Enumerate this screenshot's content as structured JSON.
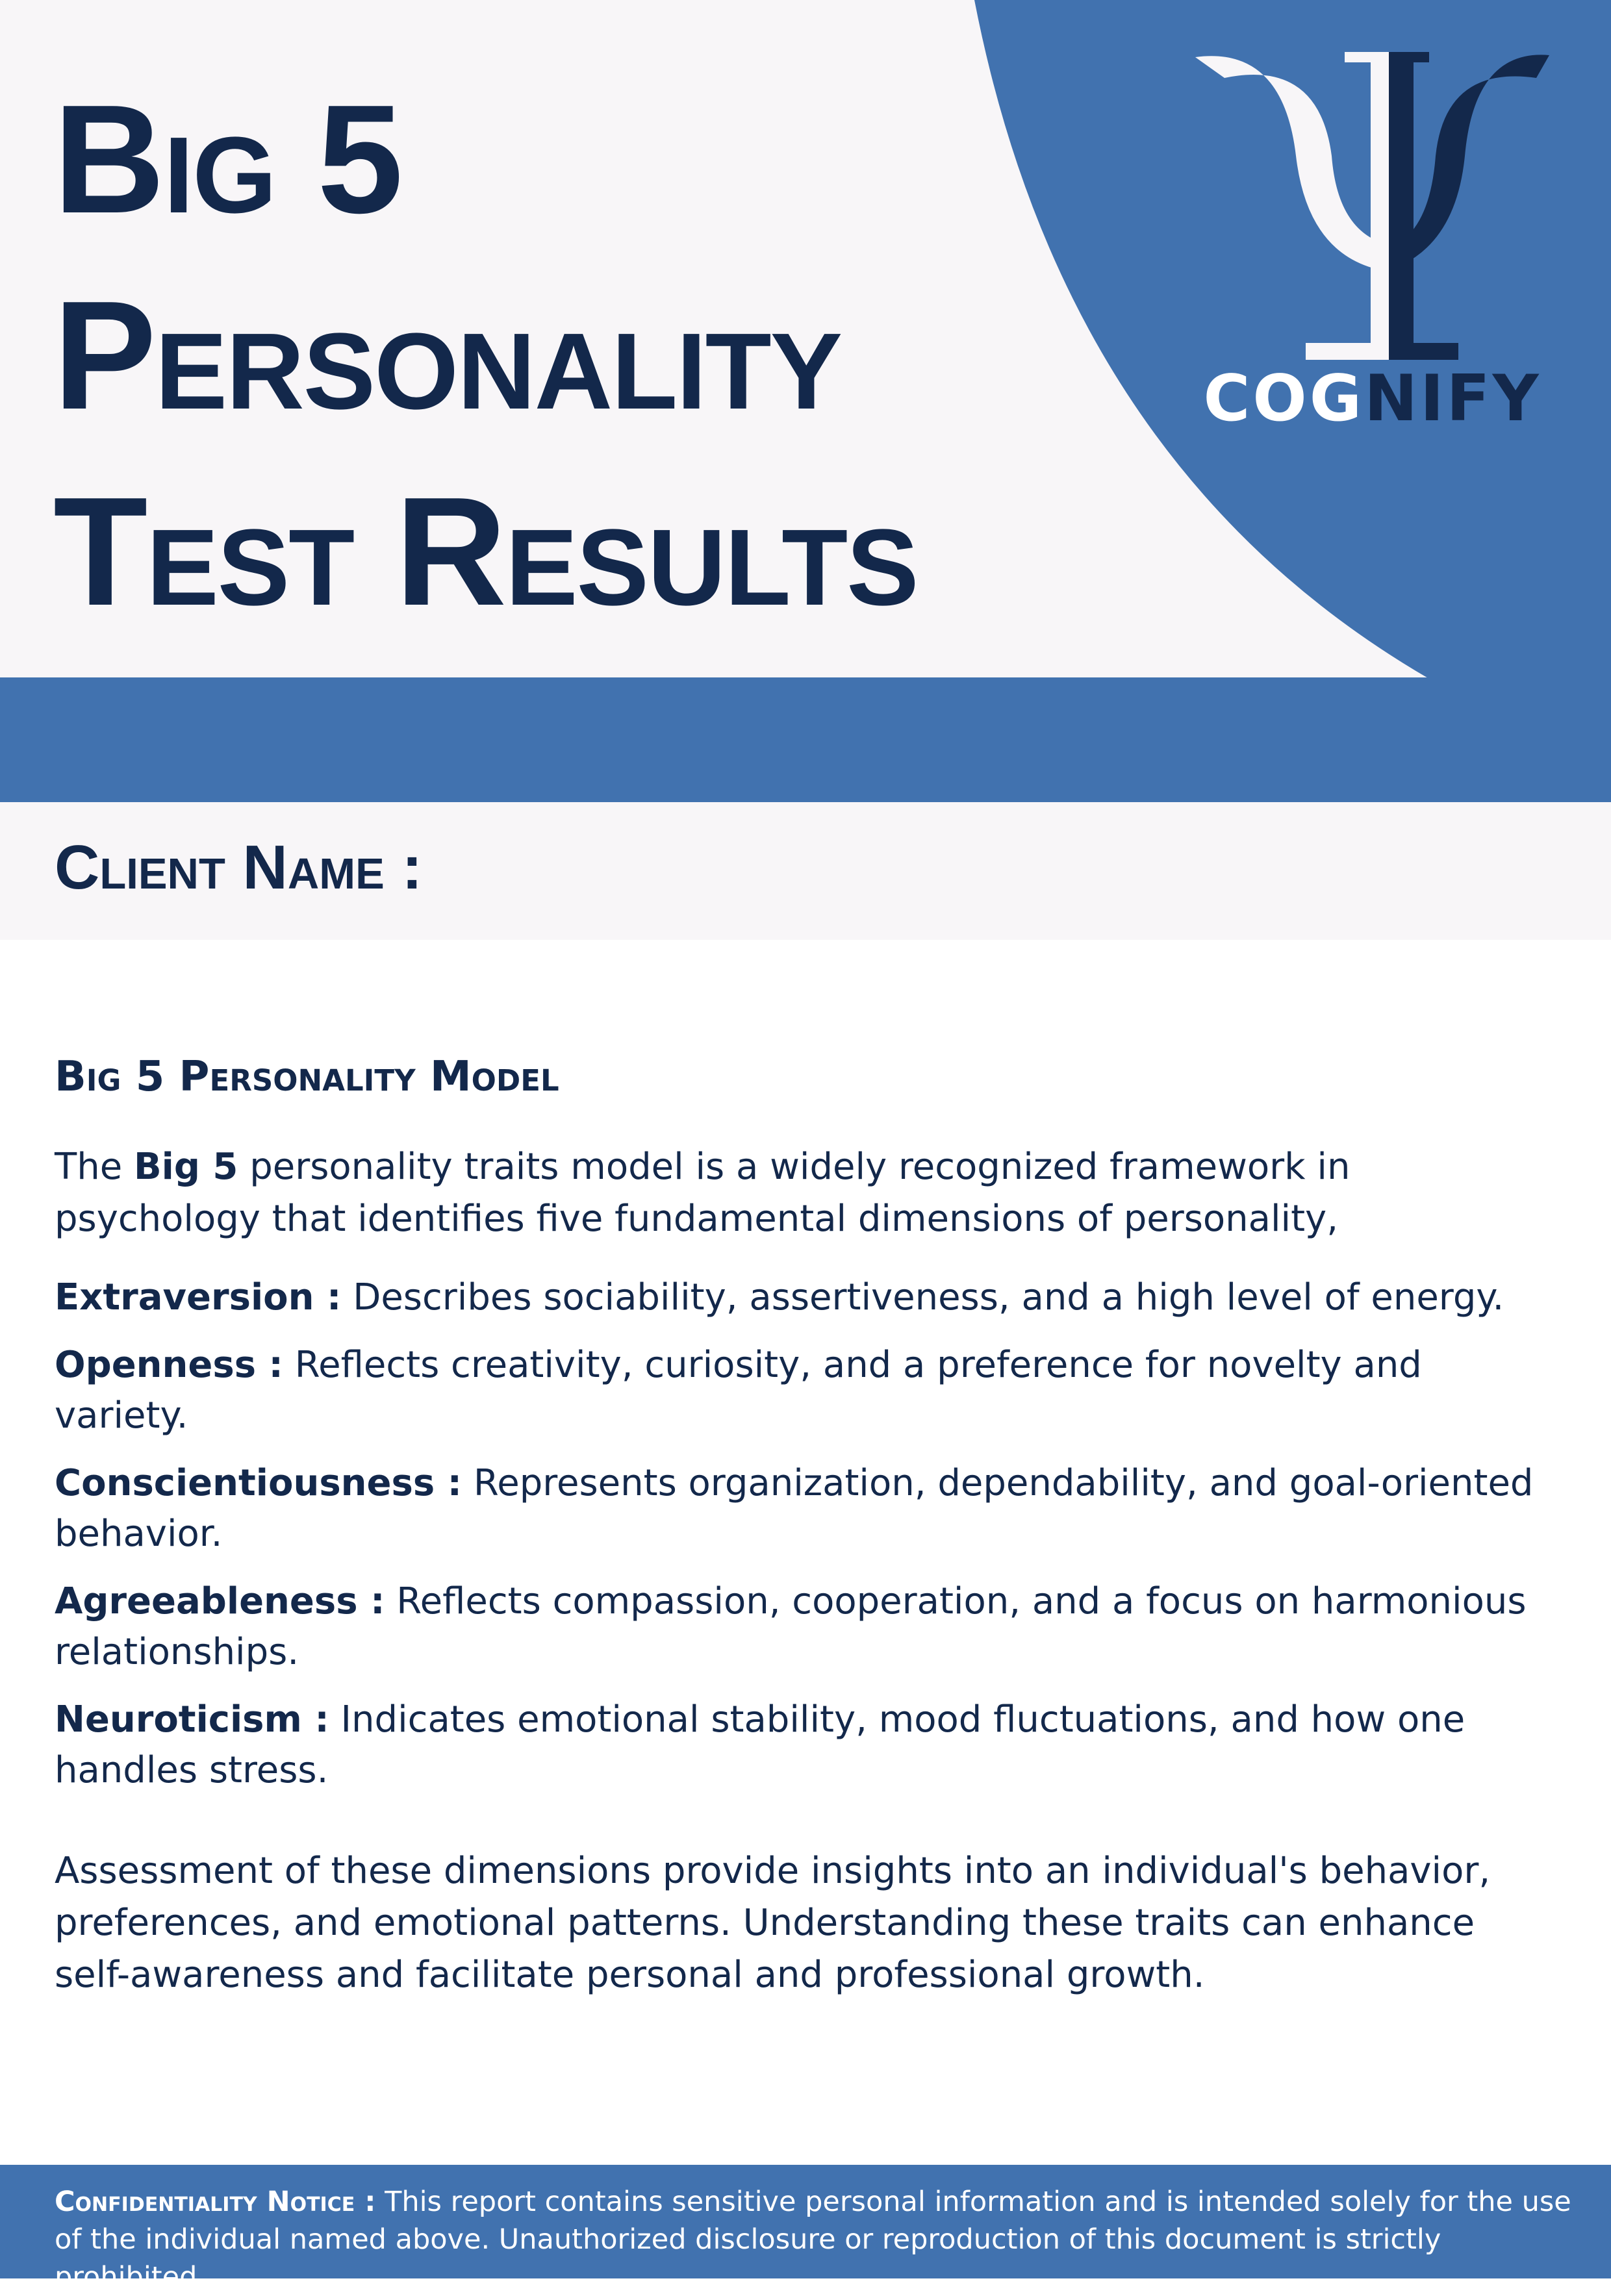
{
  "header": {
    "title_line1": "Big 5",
    "title_line2": "Personality",
    "title_line3": "Test Results",
    "brand_part1": "COG",
    "brand_part2": "NIFY",
    "logo_icon": "psi-icon",
    "colors": {
      "navy": "#13284b",
      "blue": "#4172af",
      "light_bg": "#f8f6f8"
    }
  },
  "client": {
    "label": "Client Name :"
  },
  "model": {
    "title": "Big 5 Personality Model",
    "intro_pre": "The ",
    "intro_bold": "Big 5",
    "intro_post": " personality traits model is a widely recognized framework in psychology that identifies five fundamental dimensions of personality,",
    "traits": [
      {
        "name": "Extraversion :",
        "desc": " Describes sociability, assertiveness, and a high level of energy."
      },
      {
        "name": "Openness :",
        "desc": " Reflects creativity, curiosity, and a preference for novelty and variety."
      },
      {
        "name": "Conscientiousness :",
        "desc": " Represents organization, dependability, and goal-oriented behavior."
      },
      {
        "name": "Agreeableness :",
        "desc": " Reflects compassion, cooperation, and a focus on harmonious relationships."
      },
      {
        "name": "Neuroticism :",
        "desc": " Indicates emotional stability, mood fluctuations, and how one handles stress."
      }
    ],
    "closing": "Assessment of these dimensions provide insights into an individual's behavior, preferences, and emotional patterns. Understanding these traits can enhance self-awareness and facilitate personal and professional growth."
  },
  "footer": {
    "label": "Confidentiality Notice :",
    "text": " This report contains sensitive personal information and is intended solely for the use of the individual named above. Unauthorized disclosure or reproduction of this document is strictly prohibited."
  }
}
